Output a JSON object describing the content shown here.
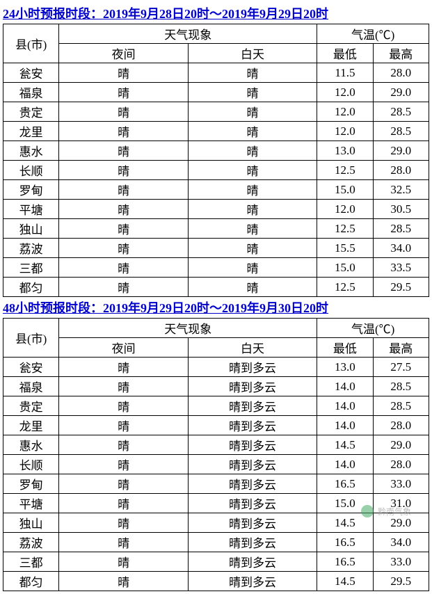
{
  "tables": [
    {
      "title": "24小时预报时段：2019年9月28日20时～2019年9月29日20时",
      "headers": {
        "county": "县(市)",
        "weather": "天气现象",
        "temp": "气温(℃)",
        "night": "夜间",
        "day": "白天",
        "low": "最低",
        "high": "最高"
      },
      "rows": [
        {
          "county": "瓮安",
          "night": "晴",
          "day": "晴",
          "low": "11.5",
          "high": "28.0"
        },
        {
          "county": "福泉",
          "night": "晴",
          "day": "晴",
          "low": "12.0",
          "high": "29.0"
        },
        {
          "county": "贵定",
          "night": "晴",
          "day": "晴",
          "low": "12.0",
          "high": "28.5"
        },
        {
          "county": "龙里",
          "night": "晴",
          "day": "晴",
          "low": "12.0",
          "high": "28.5"
        },
        {
          "county": "惠水",
          "night": "晴",
          "day": "晴",
          "low": "13.0",
          "high": "29.0"
        },
        {
          "county": "长顺",
          "night": "晴",
          "day": "晴",
          "low": "12.5",
          "high": "28.0"
        },
        {
          "county": "罗甸",
          "night": "晴",
          "day": "晴",
          "low": "15.0",
          "high": "32.5"
        },
        {
          "county": "平塘",
          "night": "晴",
          "day": "晴",
          "low": "12.0",
          "high": "30.5"
        },
        {
          "county": "独山",
          "night": "晴",
          "day": "晴",
          "low": "12.5",
          "high": "28.5"
        },
        {
          "county": "荔波",
          "night": "晴",
          "day": "晴",
          "low": "15.5",
          "high": "34.0"
        },
        {
          "county": "三都",
          "night": "晴",
          "day": "晴",
          "low": "15.0",
          "high": "33.5"
        },
        {
          "county": "都匀",
          "night": "晴",
          "day": "晴",
          "low": "12.5",
          "high": "29.5"
        }
      ]
    },
    {
      "title": "48小时预报时段：2019年9月29日20时～2019年9月30日20时",
      "headers": {
        "county": "县(市)",
        "weather": "天气现象",
        "temp": "气温(℃)",
        "night": "夜间",
        "day": "白天",
        "low": "最低",
        "high": "最高"
      },
      "rows": [
        {
          "county": "瓮安",
          "night": "晴",
          "day": "晴到多云",
          "low": "13.0",
          "high": "27.5"
        },
        {
          "county": "福泉",
          "night": "晴",
          "day": "晴到多云",
          "low": "14.0",
          "high": "28.5"
        },
        {
          "county": "贵定",
          "night": "晴",
          "day": "晴到多云",
          "low": "14.0",
          "high": "28.5"
        },
        {
          "county": "龙里",
          "night": "晴",
          "day": "晴到多云",
          "low": "14.0",
          "high": "28.0"
        },
        {
          "county": "惠水",
          "night": "晴",
          "day": "晴到多云",
          "low": "14.5",
          "high": "29.0"
        },
        {
          "county": "长顺",
          "night": "晴",
          "day": "晴到多云",
          "low": "14.0",
          "high": "28.0"
        },
        {
          "county": "罗甸",
          "night": "晴",
          "day": "晴到多云",
          "low": "16.5",
          "high": "33.0"
        },
        {
          "county": "平塘",
          "night": "晴",
          "day": "晴到多云",
          "low": "15.0",
          "high": "31.0"
        },
        {
          "county": "独山",
          "night": "晴",
          "day": "晴到多云",
          "low": "14.5",
          "high": "29.0"
        },
        {
          "county": "荔波",
          "night": "晴",
          "day": "晴到多云",
          "low": "16.5",
          "high": "34.0"
        },
        {
          "county": "三都",
          "night": "晴",
          "day": "晴到多云",
          "low": "16.5",
          "high": "33.0"
        },
        {
          "county": "都匀",
          "night": "晴",
          "day": "晴到多云",
          "low": "14.5",
          "high": "29.5"
        }
      ]
    }
  ],
  "watermark": "黔南气象",
  "styling": {
    "title_color": "#0000cc",
    "border_color": "#000000",
    "background_color": "#ffffff",
    "font_family": "SimSun",
    "font_size_pt": 17,
    "title_underline": true
  }
}
